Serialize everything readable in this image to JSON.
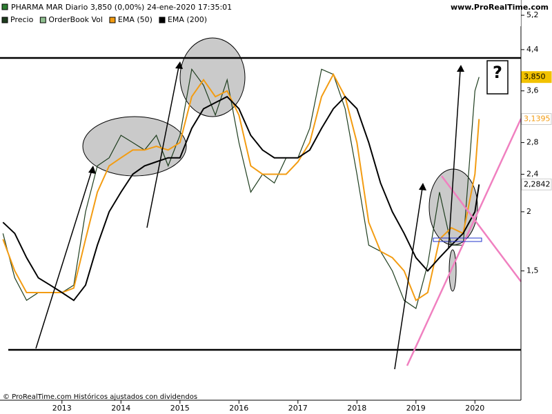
{
  "chart_data": {
    "type": "line",
    "title": "PHARMA MAR Diario 3,850 (0,00%) 24-ene-2020 17:35:01",
    "source": "www.ProRealTime.com",
    "footer": "© ProRealTime.com  Históricos ajustados con dividendos",
    "annotation": "?",
    "log_y": true,
    "grid": false,
    "x": [
      2012.0,
      2012.2,
      2012.4,
      2012.6,
      2012.8,
      2013.0,
      2013.2,
      2013.4,
      2013.6,
      2013.8,
      2014.0,
      2014.2,
      2014.4,
      2014.6,
      2014.8,
      2015.0,
      2015.2,
      2015.4,
      2015.6,
      2015.8,
      2016.0,
      2016.2,
      2016.4,
      2016.6,
      2016.8,
      2017.0,
      2017.2,
      2017.4,
      2017.6,
      2017.8,
      2018.0,
      2018.2,
      2018.4,
      2018.6,
      2018.8,
      2019.0,
      2019.2,
      2019.4,
      2019.6,
      2019.8,
      2020.0,
      2020.07
    ],
    "xlim": [
      2011.95,
      2020.78
    ],
    "xticks": [
      2013,
      2014,
      2015,
      2016,
      2017,
      2018,
      2019,
      2020
    ],
    "ylim": [
      0.8,
      5.6
    ],
    "yticks": [
      {
        "value": 5.2,
        "label": "5,2"
      },
      {
        "value": 4.4,
        "label": "4,4"
      },
      {
        "value": 3.6,
        "label": "3,6"
      },
      {
        "value": 2.8,
        "label": "2,8"
      },
      {
        "value": 2.4,
        "label": "2,4"
      },
      2,
      {
        "value": 1.5,
        "label": "1,5"
      }
    ],
    "extra_legend": [
      {
        "name": "OrderBook Vol",
        "color": "#8fbf8f"
      }
    ],
    "series": [
      {
        "name": "Precio",
        "color": "#1e3d1e",
        "label_bg": "#f2c200",
        "label_color": "#000000",
        "values": [
          1.8,
          1.45,
          1.3,
          1.35,
          1.35,
          1.35,
          1.4,
          2.0,
          2.5,
          2.6,
          2.9,
          2.8,
          2.7,
          2.9,
          2.5,
          2.9,
          4.0,
          3.7,
          3.2,
          3.8,
          2.8,
          2.2,
          2.4,
          2.3,
          2.6,
          2.6,
          3.0,
          4.0,
          3.9,
          3.3,
          2.4,
          1.7,
          1.65,
          1.5,
          1.3,
          1.25,
          1.55,
          2.2,
          1.7,
          1.7,
          3.6,
          3.85
        ],
        "value_labels": [
          null,
          null,
          null,
          null,
          null,
          null,
          null,
          null,
          null,
          null,
          null,
          null,
          null,
          null,
          null,
          null,
          null,
          null,
          null,
          null,
          null,
          null,
          null,
          null,
          null,
          null,
          null,
          null,
          null,
          null,
          null,
          null,
          null,
          null,
          null,
          null,
          null,
          null,
          null,
          null,
          null,
          "3,850"
        ]
      },
      {
        "name": "EMA (50)",
        "color": "#f39c12",
        "label_bg": "#ffffff",
        "label_color": "#f39c12",
        "values": [
          1.75,
          1.5,
          1.35,
          1.35,
          1.35,
          1.35,
          1.38,
          1.75,
          2.2,
          2.5,
          2.6,
          2.7,
          2.7,
          2.75,
          2.7,
          2.8,
          3.5,
          3.8,
          3.5,
          3.6,
          3.2,
          2.5,
          2.4,
          2.4,
          2.4,
          2.55,
          2.8,
          3.5,
          3.9,
          3.5,
          2.8,
          1.9,
          1.65,
          1.6,
          1.5,
          1.3,
          1.35,
          1.75,
          1.85,
          1.8,
          2.4,
          3.1395
        ],
        "value_labels": [
          null,
          null,
          null,
          null,
          null,
          null,
          null,
          null,
          null,
          null,
          null,
          null,
          null,
          null,
          null,
          null,
          null,
          null,
          null,
          null,
          null,
          null,
          null,
          null,
          null,
          null,
          null,
          null,
          null,
          null,
          null,
          null,
          null,
          null,
          null,
          null,
          null,
          null,
          null,
          null,
          null,
          "3,1395"
        ]
      },
      {
        "name": "EMA (200)",
        "color": "#000000",
        "label_bg": "#ffffff",
        "label_color": "#000000",
        "values": [
          1.9,
          1.8,
          1.6,
          1.45,
          1.4,
          1.35,
          1.3,
          1.4,
          1.7,
          2.0,
          2.2,
          2.4,
          2.5,
          2.55,
          2.6,
          2.6,
          3.0,
          3.3,
          3.4,
          3.5,
          3.3,
          2.9,
          2.7,
          2.6,
          2.6,
          2.6,
          2.7,
          3.0,
          3.3,
          3.5,
          3.3,
          2.8,
          2.3,
          2.0,
          1.8,
          1.6,
          1.5,
          1.6,
          1.7,
          1.8,
          2.0,
          2.2842
        ],
        "value_labels": [
          null,
          null,
          null,
          null,
          null,
          null,
          null,
          null,
          null,
          null,
          null,
          null,
          null,
          null,
          null,
          null,
          null,
          null,
          null,
          null,
          null,
          null,
          null,
          null,
          null,
          null,
          null,
          null,
          null,
          null,
          null,
          null,
          null,
          null,
          null,
          null,
          null,
          null,
          null,
          null,
          null,
          "2,2842"
        ]
      }
    ]
  }
}
